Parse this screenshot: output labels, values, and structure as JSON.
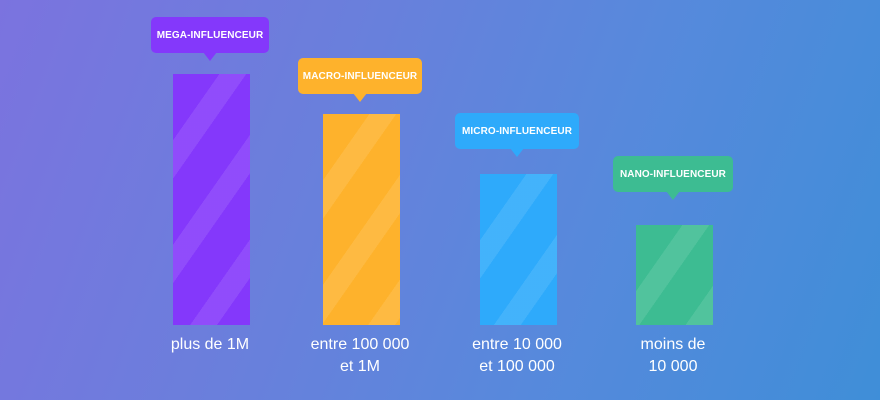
{
  "colors": {
    "mega": "#8438fb",
    "macro": "#feb22c",
    "micro": "#2eaafb",
    "nano": "#3dbc92"
  },
  "categories": [
    {
      "tag": "MEGA-INFLUENCEUR",
      "range": [
        "plus de 1M"
      ],
      "color": "#8438fb",
      "level": 1.0
    },
    {
      "tag": "MACRO-INFLUENCEUR",
      "range": [
        "entre 100 000",
        "et 1M"
      ],
      "color": "#feb22c",
      "level": 0.84
    },
    {
      "tag": "MICRO-INFLUENCEUR",
      "range": [
        "entre 10 000",
        "et 100 000"
      ],
      "color": "#2eaafb",
      "level": 0.6
    },
    {
      "tag": "NANO-INFLUENCEUR",
      "range": [
        "moins de",
        "10 000"
      ],
      "color": "#3dbc92",
      "level": 0.4
    }
  ]
}
